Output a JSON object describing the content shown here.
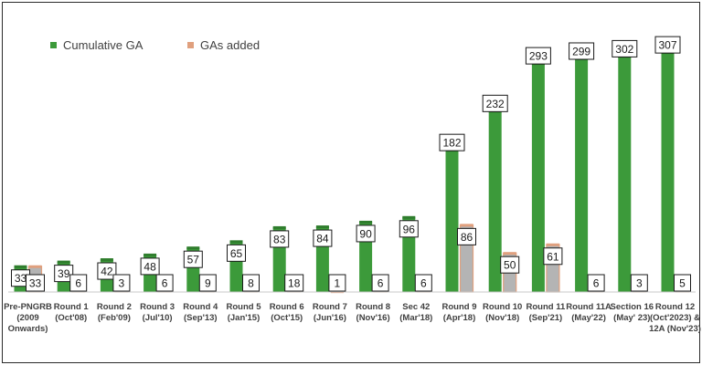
{
  "chart_data": {
    "type": "bar",
    "title": "",
    "xlabel": "",
    "ylabel": "",
    "ylim": [
      0,
      320
    ],
    "grid": false,
    "legend_position": "top-left",
    "categories": [
      [
        "Pre-PNGRB",
        "(2009",
        "Onwards)"
      ],
      [
        "Round 1",
        "(Oct'08)"
      ],
      [
        "Round 2",
        "(Feb'09)"
      ],
      [
        "Round 3",
        "(Jul'10)"
      ],
      [
        "Round 4",
        "(Sep'13)"
      ],
      [
        "Round 5",
        "(Jan'15)"
      ],
      [
        "Round 6",
        "(Oct'15)"
      ],
      [
        "Round 7",
        "(Jun'16)"
      ],
      [
        "Round 8",
        "(Nov'16)"
      ],
      [
        "Sec 42",
        "(Mar'18)"
      ],
      [
        "Round 9",
        "(Apr'18)"
      ],
      [
        "Round 10",
        "(Nov'18)"
      ],
      [
        "Round 11",
        "(Sep'21)"
      ],
      [
        "Round 11A",
        "(May'22)"
      ],
      [
        "Section 16",
        "(May' 23)"
      ],
      [
        "Round 12",
        "(Oct'2023) &",
        "12A (Nov'23)"
      ]
    ],
    "series": [
      {
        "name": "Cumulative GA",
        "color": "#3c9a3a",
        "values": [
          33,
          39,
          42,
          48,
          57,
          65,
          83,
          84,
          90,
          96,
          182,
          232,
          293,
          299,
          302,
          307
        ]
      },
      {
        "name": "GAs added",
        "color": "#b4b4b4",
        "edge_color": "#e0a07e",
        "values": [
          33,
          6,
          3,
          6,
          9,
          8,
          18,
          1,
          6,
          6,
          86,
          50,
          61,
          6,
          3,
          5
        ]
      }
    ]
  }
}
